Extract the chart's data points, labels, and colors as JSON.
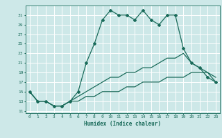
{
  "title": "",
  "xlabel": "Humidex (Indice chaleur)",
  "ylabel": "",
  "background_color": "#cde8e8",
  "grid_color": "#ffffff",
  "line_color": "#1a6b5a",
  "xlim": [
    -0.5,
    23.5
  ],
  "ylim": [
    10.5,
    33
  ],
  "xticks": [
    0,
    1,
    2,
    3,
    4,
    5,
    6,
    7,
    8,
    9,
    10,
    11,
    12,
    13,
    14,
    15,
    16,
    17,
    18,
    19,
    20,
    21,
    22,
    23
  ],
  "yticks": [
    11,
    13,
    15,
    17,
    19,
    21,
    23,
    25,
    27,
    29,
    31
  ],
  "series1_x": [
    0,
    1,
    2,
    3,
    4,
    5,
    6,
    7,
    8,
    9,
    10,
    11,
    12,
    13,
    14,
    15,
    16,
    17,
    18,
    19,
    20,
    21,
    22,
    23
  ],
  "series1_y": [
    15,
    13,
    13,
    12,
    12,
    13,
    15,
    21,
    25,
    30,
    32,
    31,
    31,
    30,
    32,
    30,
    29,
    31,
    31,
    24,
    21,
    20,
    18,
    17
  ],
  "series2_x": [
    0,
    1,
    2,
    3,
    4,
    5,
    6,
    7,
    8,
    9,
    10,
    11,
    12,
    13,
    14,
    15,
    16,
    17,
    18,
    19,
    20,
    21,
    22,
    23
  ],
  "series2_y": [
    15,
    13,
    13,
    12,
    12,
    13,
    14,
    15,
    16,
    17,
    18,
    18,
    19,
    19,
    20,
    20,
    21,
    22,
    22,
    23,
    21,
    20,
    19,
    18
  ],
  "series3_x": [
    0,
    1,
    2,
    3,
    4,
    5,
    6,
    7,
    8,
    9,
    10,
    11,
    12,
    13,
    14,
    15,
    16,
    17,
    18,
    19,
    20,
    21,
    22,
    23
  ],
  "series3_y": [
    15,
    13,
    13,
    12,
    12,
    13,
    13,
    14,
    14,
    15,
    15,
    15,
    16,
    16,
    17,
    17,
    17,
    18,
    18,
    18,
    19,
    19,
    19,
    17
  ]
}
